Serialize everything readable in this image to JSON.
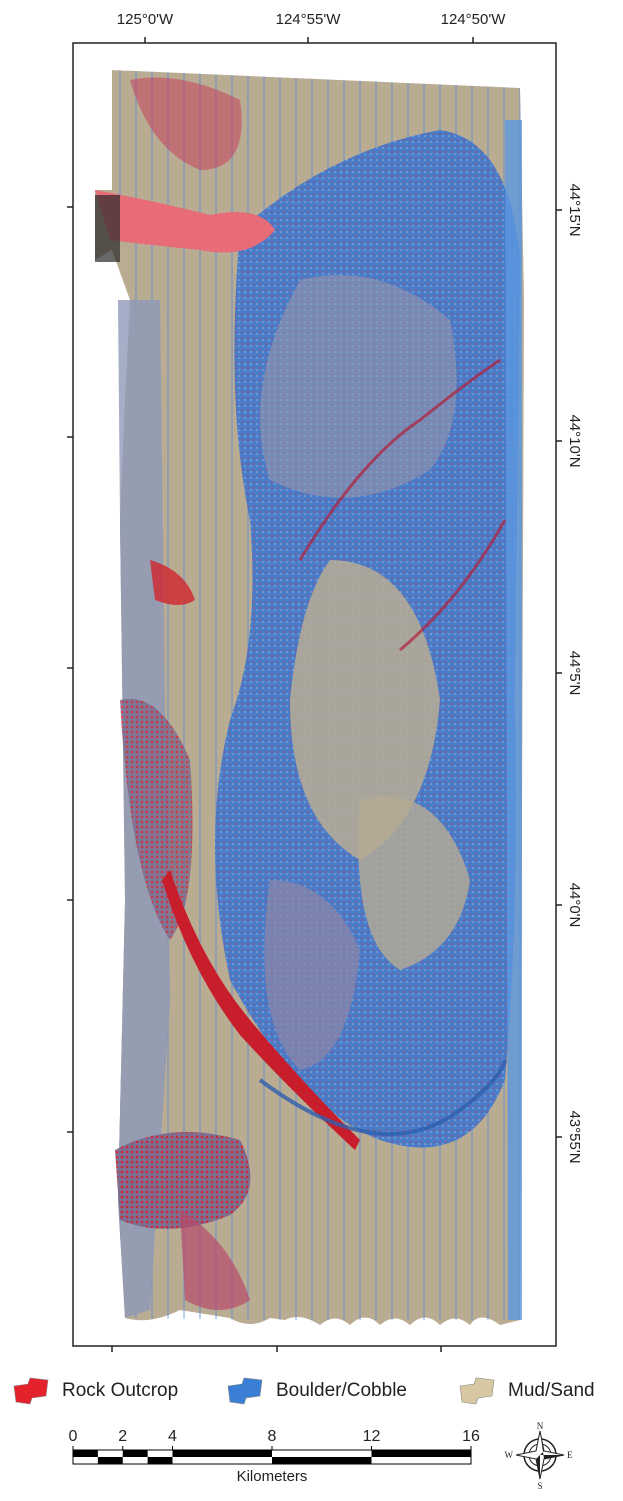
{
  "map": {
    "longitude_labels": [
      "125°0'W",
      "124°55'W",
      "124°50'W"
    ],
    "latitude_labels": [
      "44°15'N",
      "44°10'N",
      "44°5'N",
      "44°0'N",
      "43°55'N"
    ],
    "legend": [
      {
        "label": "Rock Outcrop",
        "color": "#e3222b"
      },
      {
        "label": "Boulder/Cobble",
        "color": "#3a7fd5"
      },
      {
        "label": "Mud/Sand",
        "color": "#d8c8a2"
      }
    ],
    "scale_bar": {
      "ticks": [
        0,
        2,
        4,
        8,
        12,
        16
      ],
      "unit_label": "Kilometers"
    },
    "compass": {
      "north": "N",
      "east": "E",
      "south": "S",
      "west": "W"
    }
  }
}
